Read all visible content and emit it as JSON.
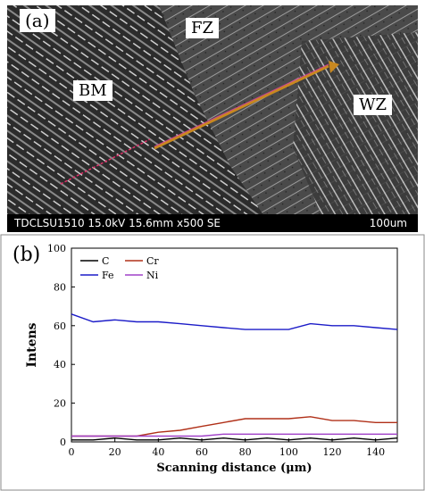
{
  "panel_a": {
    "label": "(a)",
    "regions": {
      "bm": "BM",
      "fz": "FZ",
      "wz": "WZ"
    },
    "info_bar": {
      "text": "TDCLSU1510 15.0kV 15.6mm x500 SE",
      "scale": "100um"
    }
  },
  "panel_b": {
    "label": "(b)"
  },
  "chart_data": {
    "type": "line",
    "xlabel": "Scanning distance (μm)",
    "ylabel": "Intens",
    "xlim": [
      0,
      150
    ],
    "ylim": [
      0,
      100
    ],
    "xticks": [
      0,
      20,
      40,
      60,
      80,
      100,
      120,
      140
    ],
    "yticks": [
      0,
      20,
      40,
      60,
      80,
      100
    ],
    "grid": false,
    "legend_position": "top-left",
    "series": [
      {
        "name": "C",
        "color": "#000000",
        "x": [
          0,
          10,
          20,
          30,
          40,
          50,
          60,
          70,
          80,
          90,
          100,
          110,
          120,
          130,
          140,
          150
        ],
        "values": [
          1,
          1,
          2,
          1,
          1,
          2,
          1,
          2,
          1,
          2,
          1,
          2,
          1,
          2,
          1,
          2
        ]
      },
      {
        "name": "Cr",
        "color": "#b03018",
        "x": [
          0,
          10,
          20,
          30,
          40,
          50,
          60,
          70,
          80,
          90,
          100,
          110,
          120,
          130,
          140,
          150
        ],
        "values": [
          3,
          3,
          3,
          3,
          5,
          6,
          8,
          10,
          12,
          12,
          12,
          13,
          11,
          11,
          10,
          10
        ]
      },
      {
        "name": "Fe",
        "color": "#1c1cc8",
        "x": [
          0,
          10,
          20,
          30,
          40,
          50,
          60,
          70,
          80,
          90,
          100,
          110,
          120,
          130,
          140,
          150
        ],
        "values": [
          66,
          62,
          63,
          62,
          62,
          61,
          60,
          59,
          58,
          58,
          58,
          61,
          60,
          60,
          59,
          58
        ]
      },
      {
        "name": "Ni",
        "color": "#a040c8",
        "x": [
          0,
          10,
          20,
          30,
          40,
          50,
          60,
          70,
          80,
          90,
          100,
          110,
          120,
          130,
          140,
          150
        ],
        "values": [
          3,
          3,
          3,
          3,
          3,
          3,
          3,
          4,
          4,
          4,
          4,
          4,
          4,
          4,
          4,
          4
        ]
      }
    ]
  }
}
